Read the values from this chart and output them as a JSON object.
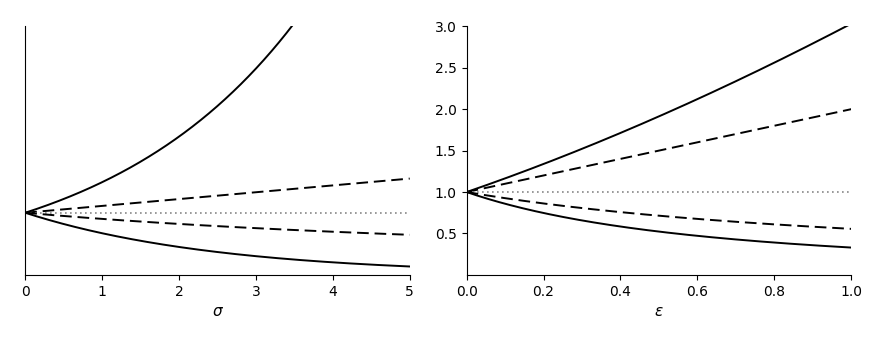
{
  "left_plot": {
    "xlabel": "σ",
    "xlim": [
      0,
      5
    ],
    "xticks": [
      0,
      1,
      2,
      3,
      4,
      5
    ],
    "ylim": [
      0,
      4.0
    ],
    "n_points": 1000
  },
  "right_plot": {
    "xlabel": "ε",
    "xlim": [
      0.0,
      1.0
    ],
    "xticks": [
      0.0,
      0.2,
      0.4,
      0.6,
      0.8,
      1.0
    ],
    "ylim": [
      0,
      3.0
    ],
    "yticks": [
      0.5,
      1.0,
      1.5,
      2.0,
      2.5,
      3.0
    ],
    "n_points": 1000
  },
  "left_formulas": {
    "upper_HR_scale": 0.4,
    "upper_HL_slope": 0.11,
    "lower_HL_slope": 0.11,
    "lower_HR_scale": 0.4
  },
  "right_formulas": {
    "upper_HR_power": 1.6,
    "upper_HL_slope": 1.0,
    "lower_HL_denom_slope": 0.8,
    "lower_HR_power": 1.6
  },
  "line_color": "#000000",
  "dotted_color": "#888888",
  "linewidth_solid": 1.4,
  "linewidth_dashed": 1.4,
  "linewidth_dotted": 1.2,
  "dash_pattern": [
    6,
    3
  ],
  "dot_pattern": [
    1,
    2
  ]
}
